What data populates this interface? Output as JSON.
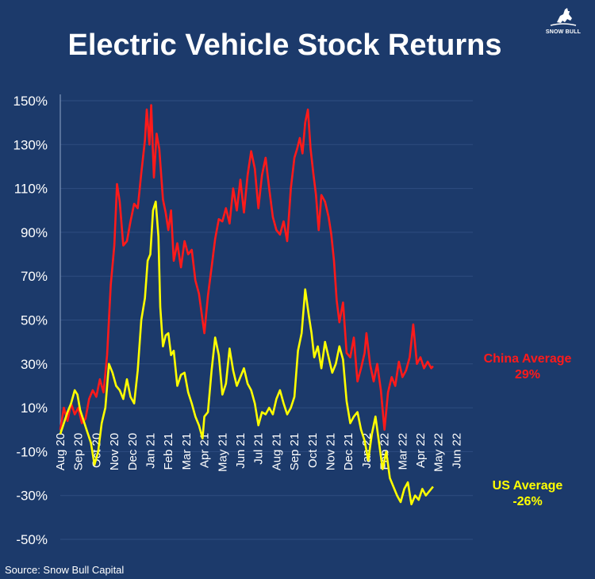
{
  "header": {
    "title": "Electric Vehicle Stock Returns",
    "logo_text": "SNOW BULL"
  },
  "footer": {
    "source": "Source: Snow Bull Capital"
  },
  "labels": {
    "china_name": "China Average",
    "china_value": "29%",
    "us_name": "US Average",
    "us_value": "-26%"
  },
  "colors": {
    "background": "#1c3a6b",
    "china": "#ff1a1a",
    "us": "#ffff00",
    "grid": "#2e4d80",
    "text": "#ffffff"
  },
  "chart_data": {
    "type": "line",
    "title": "Electric Vehicle Stock Returns",
    "xlabel": "",
    "ylabel": "",
    "ylim": [
      -50,
      150
    ],
    "yticks": [
      -50,
      -30,
      -10,
      10,
      30,
      50,
      70,
      90,
      110,
      130,
      150
    ],
    "ytick_labels": [
      "-50%",
      "-30%",
      "-10%",
      "10%",
      "30%",
      "50%",
      "70%",
      "90%",
      "110%",
      "130%",
      "150%"
    ],
    "xticks": [
      "Aug 20",
      "Sep 20",
      "Oct 20",
      "Nov 20",
      "Dec 20",
      "Jan 21",
      "Feb 21",
      "Mar 21",
      "Apr 21",
      "May 21",
      "Jun 21",
      "Jul 21",
      "Aug 21",
      "Sep 21",
      "Oct 21",
      "Nov 21",
      "Dec 21",
      "Jan 22",
      "Feb 22",
      "Mar 22",
      "Apr 22",
      "May 22",
      "Jun 22"
    ],
    "grid": true,
    "series": [
      {
        "name": "China Average",
        "color": "#ff1a1a",
        "end_value": 29,
        "points": [
          [
            0,
            0
          ],
          [
            0.2,
            10
          ],
          [
            0.4,
            4
          ],
          [
            0.6,
            12
          ],
          [
            0.8,
            7
          ],
          [
            1.0,
            10
          ],
          [
            1.2,
            3
          ],
          [
            1.4,
            5
          ],
          [
            1.6,
            14
          ],
          [
            1.8,
            18
          ],
          [
            2.0,
            15
          ],
          [
            2.2,
            23
          ],
          [
            2.4,
            17
          ],
          [
            2.6,
            34
          ],
          [
            2.8,
            66
          ],
          [
            3.0,
            84
          ],
          [
            3.15,
            112
          ],
          [
            3.3,
            104
          ],
          [
            3.5,
            84
          ],
          [
            3.7,
            86
          ],
          [
            3.9,
            95
          ],
          [
            4.1,
            103
          ],
          [
            4.3,
            101
          ],
          [
            4.5,
            117
          ],
          [
            4.7,
            132
          ],
          [
            4.8,
            146
          ],
          [
            4.95,
            130
          ],
          [
            5.05,
            148
          ],
          [
            5.2,
            115
          ],
          [
            5.35,
            135
          ],
          [
            5.5,
            128
          ],
          [
            5.7,
            105
          ],
          [
            5.85,
            99
          ],
          [
            6.0,
            91
          ],
          [
            6.15,
            100
          ],
          [
            6.3,
            77
          ],
          [
            6.5,
            85
          ],
          [
            6.7,
            74
          ],
          [
            6.9,
            86
          ],
          [
            7.1,
            80
          ],
          [
            7.3,
            82
          ],
          [
            7.5,
            68
          ],
          [
            7.7,
            62
          ],
          [
            7.9,
            50
          ],
          [
            8.0,
            44
          ],
          [
            8.2,
            61
          ],
          [
            8.4,
            74
          ],
          [
            8.6,
            87
          ],
          [
            8.8,
            96
          ],
          [
            9.0,
            95
          ],
          [
            9.2,
            101
          ],
          [
            9.4,
            94
          ],
          [
            9.6,
            110
          ],
          [
            9.8,
            100
          ],
          [
            10.0,
            114
          ],
          [
            10.2,
            99
          ],
          [
            10.4,
            116
          ],
          [
            10.6,
            127
          ],
          [
            10.8,
            119
          ],
          [
            11.0,
            101
          ],
          [
            11.2,
            116
          ],
          [
            11.4,
            124
          ],
          [
            11.6,
            110
          ],
          [
            11.8,
            97
          ],
          [
            12.0,
            91
          ],
          [
            12.2,
            89
          ],
          [
            12.4,
            95
          ],
          [
            12.6,
            86
          ],
          [
            12.8,
            110
          ],
          [
            13.0,
            124
          ],
          [
            13.15,
            128
          ],
          [
            13.3,
            133
          ],
          [
            13.45,
            126
          ],
          [
            13.6,
            140
          ],
          [
            13.75,
            146
          ],
          [
            13.9,
            128
          ],
          [
            14.05,
            117
          ],
          [
            14.2,
            107
          ],
          [
            14.35,
            91
          ],
          [
            14.5,
            107
          ],
          [
            14.7,
            104
          ],
          [
            14.9,
            97
          ],
          [
            15.05,
            89
          ],
          [
            15.2,
            77
          ],
          [
            15.35,
            59
          ],
          [
            15.5,
            49
          ],
          [
            15.7,
            58
          ],
          [
            15.9,
            35
          ],
          [
            16.1,
            33
          ],
          [
            16.3,
            42
          ],
          [
            16.5,
            22
          ],
          [
            16.7,
            28
          ],
          [
            16.9,
            35
          ],
          [
            17.0,
            44
          ],
          [
            17.2,
            30
          ],
          [
            17.4,
            22
          ],
          [
            17.6,
            30
          ],
          [
            17.8,
            18
          ],
          [
            18.0,
            0
          ],
          [
            18.2,
            17
          ],
          [
            18.4,
            24
          ],
          [
            18.6,
            20
          ],
          [
            18.8,
            31
          ],
          [
            19.0,
            24
          ],
          [
            19.2,
            27
          ],
          [
            19.4,
            33
          ],
          [
            19.6,
            48
          ],
          [
            19.8,
            30
          ],
          [
            20.0,
            33
          ],
          [
            20.2,
            28
          ],
          [
            20.4,
            31
          ],
          [
            20.6,
            28
          ],
          [
            20.7,
            29
          ]
        ]
      },
      {
        "name": "US Average",
        "color": "#ffff00",
        "end_value": -26,
        "points": [
          [
            0,
            -2
          ],
          [
            0.2,
            3
          ],
          [
            0.4,
            8
          ],
          [
            0.6,
            12
          ],
          [
            0.8,
            18
          ],
          [
            0.95,
            16
          ],
          [
            1.1,
            9
          ],
          [
            1.3,
            4
          ],
          [
            1.5,
            -1
          ],
          [
            1.7,
            -6
          ],
          [
            1.9,
            -16
          ],
          [
            2.1,
            -10
          ],
          [
            2.3,
            3
          ],
          [
            2.5,
            10
          ],
          [
            2.7,
            30
          ],
          [
            2.9,
            26
          ],
          [
            3.1,
            20
          ],
          [
            3.3,
            18
          ],
          [
            3.5,
            14
          ],
          [
            3.7,
            23
          ],
          [
            3.9,
            15
          ],
          [
            4.1,
            12
          ],
          [
            4.3,
            27
          ],
          [
            4.5,
            50
          ],
          [
            4.7,
            60
          ],
          [
            4.85,
            77
          ],
          [
            5.0,
            80
          ],
          [
            5.15,
            100
          ],
          [
            5.3,
            104
          ],
          [
            5.45,
            88
          ],
          [
            5.55,
            56
          ],
          [
            5.7,
            38
          ],
          [
            5.85,
            43
          ],
          [
            6.0,
            44
          ],
          [
            6.15,
            34
          ],
          [
            6.3,
            36
          ],
          [
            6.5,
            20
          ],
          [
            6.7,
            25
          ],
          [
            6.9,
            26
          ],
          [
            7.1,
            17
          ],
          [
            7.3,
            12
          ],
          [
            7.5,
            6
          ],
          [
            7.7,
            2
          ],
          [
            7.9,
            -4
          ],
          [
            8.0,
            6
          ],
          [
            8.2,
            8
          ],
          [
            8.4,
            27
          ],
          [
            8.6,
            42
          ],
          [
            8.8,
            34
          ],
          [
            9.0,
            16
          ],
          [
            9.2,
            21
          ],
          [
            9.4,
            37
          ],
          [
            9.6,
            27
          ],
          [
            9.8,
            20
          ],
          [
            10.0,
            24
          ],
          [
            10.2,
            28
          ],
          [
            10.4,
            21
          ],
          [
            10.6,
            18
          ],
          [
            10.8,
            12
          ],
          [
            11.0,
            2
          ],
          [
            11.2,
            8
          ],
          [
            11.4,
            7
          ],
          [
            11.6,
            10
          ],
          [
            11.8,
            7
          ],
          [
            12.0,
            14
          ],
          [
            12.2,
            18
          ],
          [
            12.4,
            12
          ],
          [
            12.6,
            7
          ],
          [
            12.8,
            10
          ],
          [
            13.0,
            15
          ],
          [
            13.2,
            36
          ],
          [
            13.4,
            44
          ],
          [
            13.6,
            64
          ],
          [
            13.8,
            52
          ],
          [
            13.95,
            44
          ],
          [
            14.1,
            33
          ],
          [
            14.3,
            38
          ],
          [
            14.5,
            28
          ],
          [
            14.7,
            40
          ],
          [
            14.9,
            33
          ],
          [
            15.1,
            26
          ],
          [
            15.3,
            30
          ],
          [
            15.5,
            38
          ],
          [
            15.7,
            32
          ],
          [
            15.9,
            13
          ],
          [
            16.1,
            3
          ],
          [
            16.3,
            6
          ],
          [
            16.5,
            8
          ],
          [
            16.7,
            0
          ],
          [
            16.9,
            -5
          ],
          [
            17.1,
            -14
          ],
          [
            17.3,
            -2
          ],
          [
            17.5,
            6
          ],
          [
            17.7,
            -6
          ],
          [
            17.9,
            -18
          ],
          [
            18.1,
            -10
          ],
          [
            18.3,
            -22
          ],
          [
            18.5,
            -26
          ],
          [
            18.7,
            -30
          ],
          [
            18.9,
            -33
          ],
          [
            19.1,
            -27
          ],
          [
            19.3,
            -24
          ],
          [
            19.5,
            -34
          ],
          [
            19.7,
            -30
          ],
          [
            19.9,
            -32
          ],
          [
            20.1,
            -27
          ],
          [
            20.3,
            -30
          ],
          [
            20.5,
            -28
          ],
          [
            20.7,
            -26
          ]
        ]
      }
    ]
  }
}
